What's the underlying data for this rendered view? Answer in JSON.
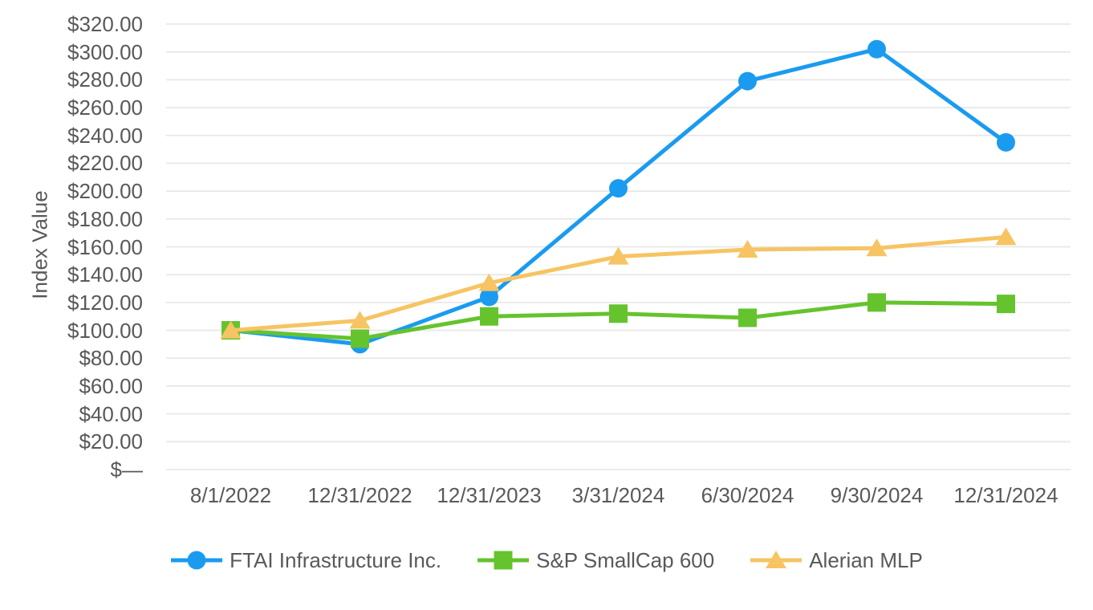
{
  "chart_data": {
    "type": "line",
    "title": "",
    "xlabel": "",
    "ylabel": "Index Value",
    "ylim": [
      0,
      320
    ],
    "y_tick_step": 20,
    "y_tick_labels": [
      "$—",
      "$20.00",
      "$40.00",
      "$60.00",
      "$80.00",
      "$100.00",
      "$120.00",
      "$140.00",
      "$160.00",
      "$180.00",
      "$200.00",
      "$220.00",
      "$240.00",
      "$260.00",
      "$280.00",
      "$300.00",
      "$320.00"
    ],
    "x": [
      "8/1/2022",
      "12/31/2022",
      "12/31/2023",
      "3/31/2024",
      "6/30/2024",
      "9/30/2024",
      "12/31/2024"
    ],
    "grid": true,
    "legend_position": "bottom",
    "series": [
      {
        "name": "FTAI Infrastructure Inc.",
        "color": "#1A9BF0",
        "marker": "circle",
        "values": [
          100,
          90,
          124,
          202,
          279,
          302,
          235
        ]
      },
      {
        "name": "S&P SmallCap 600",
        "color": "#65C32D",
        "marker": "square",
        "values": [
          100,
          94,
          110,
          112,
          109,
          120,
          119
        ]
      },
      {
        "name": "Alerian MLP",
        "color": "#F6C463",
        "marker": "triangle",
        "values": [
          100,
          107,
          134,
          153,
          158,
          159,
          167
        ]
      }
    ],
    "colors": {
      "gridline": "#E8E8E8",
      "axis_text": "#595959",
      "background": "#FFFFFF"
    }
  }
}
